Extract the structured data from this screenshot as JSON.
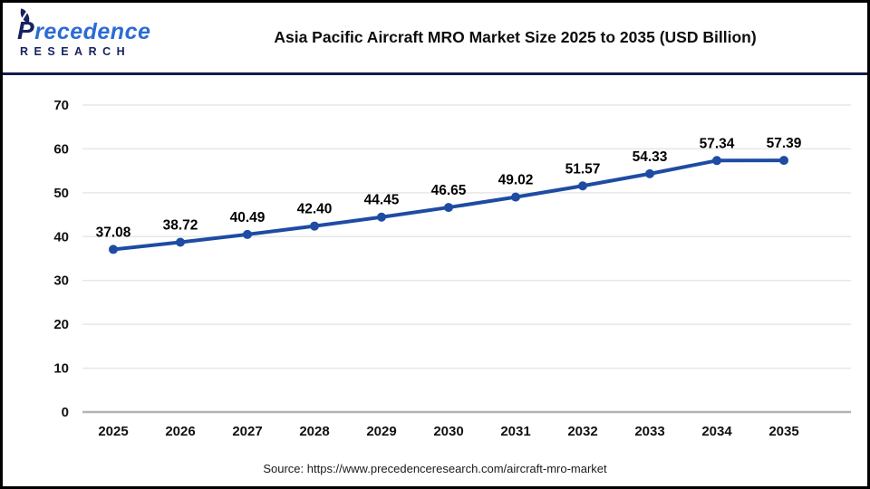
{
  "header": {
    "logo": {
      "initial": "P",
      "rest": "recedence",
      "line2": "RESEARCH"
    },
    "title": "Asia Pacific Aircraft MRO Market Size 2025 to 2035 (USD Billion)"
  },
  "chart_data": {
    "type": "line",
    "title": "Asia Pacific Aircraft MRO Market Size 2025 to 2035 (USD Billion)",
    "categories": [
      "2025",
      "2026",
      "2027",
      "2028",
      "2029",
      "2030",
      "2031",
      "2032",
      "2033",
      "2034",
      "2035"
    ],
    "values": [
      37.08,
      38.72,
      40.49,
      42.4,
      44.45,
      46.65,
      49.02,
      51.57,
      54.33,
      57.34,
      57.39
    ],
    "value_labels": [
      "37.08",
      "38.72",
      "40.49",
      "42.40",
      "44.45",
      "46.65",
      "49.02",
      "51.57",
      "54.33",
      "57.34",
      "57.39"
    ],
    "xlabel": "",
    "ylabel": "",
    "ylim": [
      0,
      70
    ],
    "ytick_step": 10,
    "grid": true,
    "legend_position": "none",
    "data_labels": true,
    "marker": "circle",
    "colors": {
      "line": "#1e4ca3",
      "marker": "#1e4ca3",
      "grid": "#e7e7e7",
      "axis": "#b3b3b3",
      "tick_text": "#111111",
      "data_label_text": "#000000"
    }
  },
  "footer": {
    "source": "Source: https://www.precedenceresearch.com/aircraft-mro-market"
  },
  "colors": {
    "divider": "#141b4d",
    "border": "#000000",
    "logo_navy": "#17225e",
    "logo_blue": "#2b6cd4"
  }
}
